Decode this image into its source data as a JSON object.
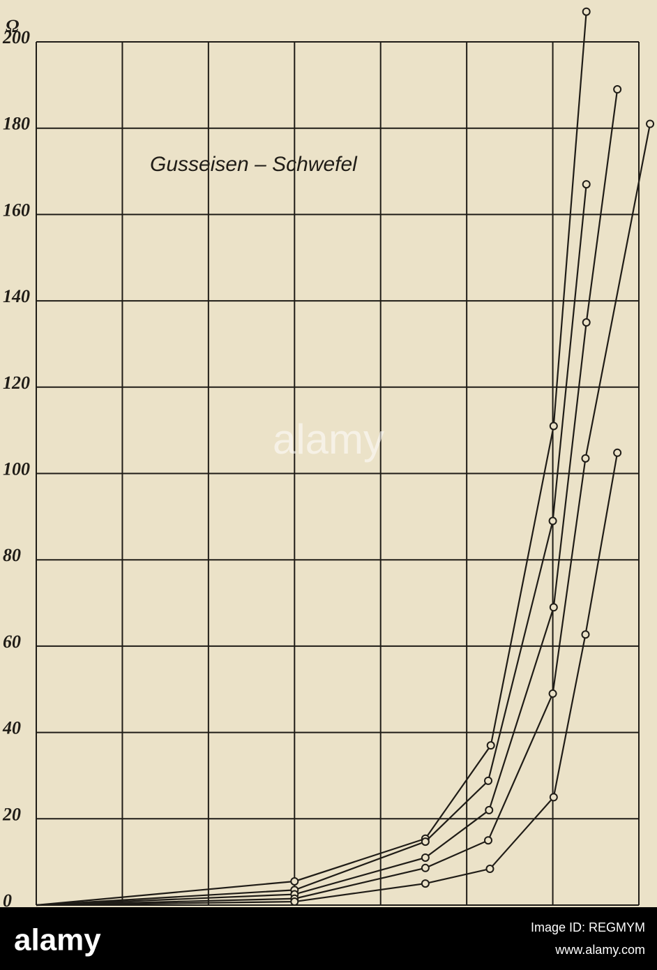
{
  "chart_data": {
    "type": "line",
    "annotation": "Gusseisen – Schwefel",
    "y_label": "Ω",
    "xlim": [
      0,
      7
    ],
    "ylim": [
      0,
      200
    ],
    "yticks": [
      0,
      20,
      40,
      60,
      80,
      100,
      120,
      140,
      160,
      180,
      200
    ],
    "grid": true,
    "color": "#1f1c17",
    "series": [
      {
        "x": [
          0,
          3.0,
          4.52,
          5.28,
          6.01,
          6.39
        ],
        "values": [
          0,
          5.5,
          15.4,
          37,
          111,
          207
        ]
      },
      {
        "x": [
          0,
          3.0,
          4.52,
          5.25,
          6.0,
          6.39
        ],
        "values": [
          0,
          3.5,
          14.7,
          28.8,
          89,
          167
        ]
      },
      {
        "x": [
          0,
          3.0,
          4.52,
          5.26,
          6.01,
          6.39,
          6.75
        ],
        "values": [
          0,
          2.5,
          11,
          22,
          69,
          135,
          189
        ]
      },
      {
        "x": [
          0,
          3.0,
          4.52,
          5.25,
          6.0,
          6.38,
          7.13
        ],
        "values": [
          0,
          1.5,
          8.6,
          15,
          49,
          103.5,
          181
        ]
      },
      {
        "x": [
          0,
          3.0,
          4.52,
          5.27,
          6.01,
          6.38,
          6.75
        ],
        "values": [
          0,
          0.8,
          5,
          8.4,
          25,
          62.7,
          104.8
        ]
      }
    ]
  },
  "watermark": "alamy",
  "footer": {
    "logo": "alamy",
    "image_id": "Image ID: REGMYM",
    "url": "www.alamy.com"
  }
}
